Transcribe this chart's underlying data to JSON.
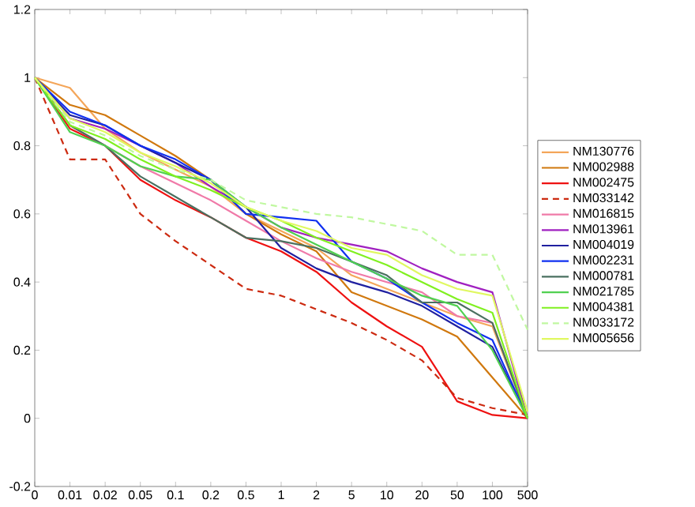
{
  "chart_data": {
    "type": "line",
    "categories": [
      "0",
      "0.01",
      "0.02",
      "0.05",
      "0.1",
      "0.2",
      "0.5",
      "1",
      "2",
      "5",
      "10",
      "20",
      "50",
      "100",
      "500"
    ],
    "ylim": [
      -0.2,
      1.2
    ],
    "yticks": [
      -0.2,
      0,
      0.2,
      0.4,
      0.6,
      0.8,
      1,
      1.2
    ],
    "legend": "right",
    "grid": false,
    "marker": "none",
    "line_style": "solid",
    "series": [
      {
        "name": "NM130776",
        "color": "#f4a65a",
        "values": [
          1,
          0.97,
          0.85,
          0.78,
          0.73,
          0.68,
          0.6,
          0.55,
          0.5,
          0.42,
          0.38,
          0.34,
          0.3,
          0.27,
          0
        ]
      },
      {
        "name": "NM002988",
        "color": "#d0780e",
        "values": [
          1,
          0.92,
          0.89,
          0.83,
          0.77,
          0.7,
          0.6,
          0.54,
          0.49,
          0.37,
          0.33,
          0.29,
          0.24,
          0.12,
          0
        ]
      },
      {
        "name": "NM002475",
        "color": "#ee1111",
        "values": [
          1,
          0.85,
          0.8,
          0.7,
          0.64,
          0.59,
          0.53,
          0.49,
          0.43,
          0.34,
          0.27,
          0.21,
          0.05,
          0.01,
          0
        ]
      },
      {
        "name": "NM033142",
        "color": "#cc2a10",
        "line_style": "dashed",
        "values": [
          1,
          0.76,
          0.76,
          0.6,
          0.52,
          0.45,
          0.38,
          0.36,
          0.32,
          0.28,
          0.23,
          0.17,
          0.06,
          0.03,
          0.01
        ]
      },
      {
        "name": "NM016815",
        "color": "#f07aa8",
        "values": [
          1,
          0.86,
          0.8,
          0.74,
          0.69,
          0.64,
          0.58,
          0.52,
          0.47,
          0.43,
          0.4,
          0.37,
          0.3,
          0.28,
          0
        ]
      },
      {
        "name": "NM013961",
        "color": "#a020c0",
        "values": [
          1,
          0.88,
          0.85,
          0.8,
          0.75,
          0.68,
          0.62,
          0.56,
          0.53,
          0.51,
          0.49,
          0.44,
          0.4,
          0.37,
          0
        ]
      },
      {
        "name": "NM004019",
        "color": "#2020a0",
        "values": [
          1,
          0.89,
          0.86,
          0.8,
          0.75,
          0.7,
          0.62,
          0.5,
          0.44,
          0.4,
          0.37,
          0.33,
          0.27,
          0.21,
          0
        ]
      },
      {
        "name": "NM002231",
        "color": "#1030f0",
        "values": [
          1,
          0.9,
          0.86,
          0.8,
          0.76,
          0.7,
          0.6,
          0.59,
          0.58,
          0.46,
          0.41,
          0.34,
          0.28,
          0.23,
          0
        ]
      },
      {
        "name": "NM000781",
        "color": "#4a7060",
        "values": [
          1,
          0.86,
          0.8,
          0.71,
          0.65,
          0.59,
          0.53,
          0.52,
          0.5,
          0.46,
          0.42,
          0.34,
          0.34,
          0.28,
          0
        ]
      },
      {
        "name": "NM021785",
        "color": "#50d050",
        "values": [
          1,
          0.84,
          0.8,
          0.74,
          0.71,
          0.7,
          0.62,
          0.56,
          0.51,
          0.46,
          0.41,
          0.36,
          0.33,
          0.2,
          0
        ]
      },
      {
        "name": "NM004381",
        "color": "#80f020",
        "values": [
          1,
          0.86,
          0.82,
          0.76,
          0.71,
          0.67,
          0.62,
          0.58,
          0.53,
          0.49,
          0.45,
          0.4,
          0.35,
          0.31,
          0
        ]
      },
      {
        "name": "NM033172",
        "color": "#c0f8a0",
        "line_style": "dashed",
        "values": [
          1,
          0.87,
          0.83,
          0.77,
          0.73,
          0.7,
          0.64,
          0.62,
          0.6,
          0.59,
          0.57,
          0.55,
          0.48,
          0.48,
          0.26
        ]
      },
      {
        "name": "NM005656",
        "color": "#e0f860",
        "values": [
          1,
          0.88,
          0.84,
          0.78,
          0.74,
          0.69,
          0.62,
          0.58,
          0.55,
          0.5,
          0.48,
          0.42,
          0.38,
          0.36,
          0.02
        ]
      }
    ]
  }
}
